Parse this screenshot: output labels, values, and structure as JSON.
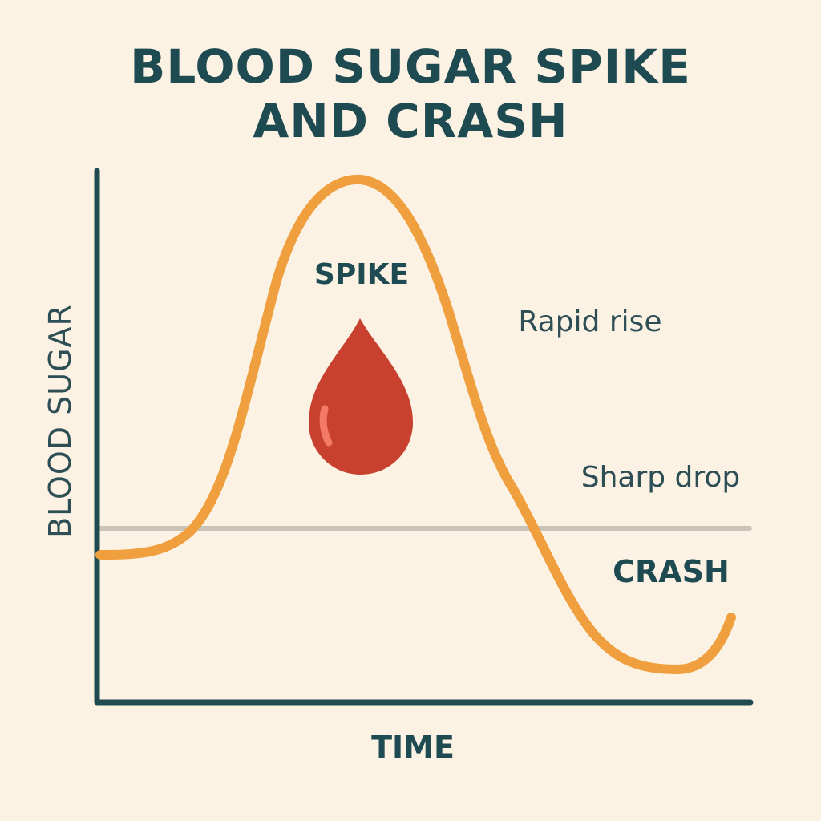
{
  "title": {
    "line1": "BLOOD SUGAR SPIKE",
    "line2": "AND CRASH"
  },
  "axes": {
    "y_label": "BLOOD SUGAR",
    "x_label": "TIME"
  },
  "annotations": {
    "spike": "SPIKE",
    "rapid_rise": "Rapid rise",
    "sharp_drop": "Sharp drop",
    "crash": "CRASH"
  },
  "colors": {
    "background": "#fcf2e4",
    "axis": "#1e4a52",
    "curve": "#ef9f3e",
    "baseline": "#c9c3b8",
    "drop": "#c8412f",
    "drop_highlight": "#f27a67"
  },
  "icons": {
    "drop": "blood-drop-icon"
  }
}
